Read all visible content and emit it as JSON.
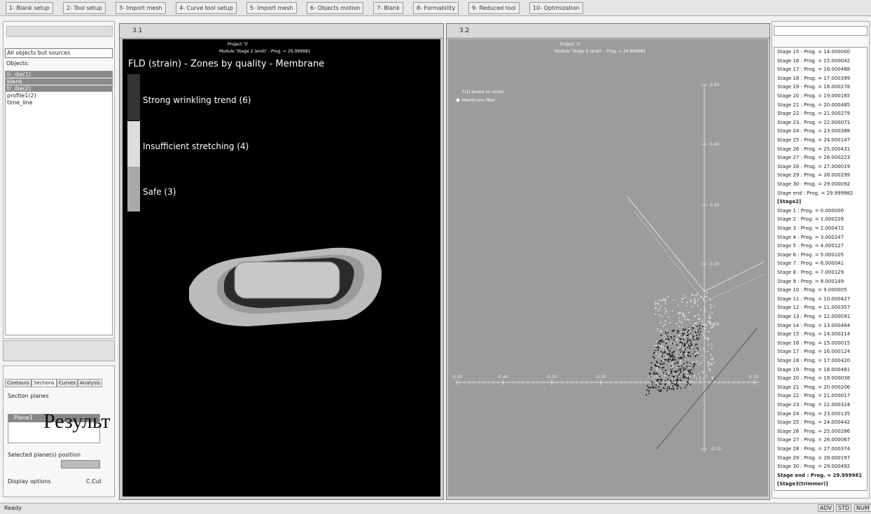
{
  "toolbar": {
    "buttons": [
      "1- Blank setup",
      "2- Tool setup",
      "3- Import mesh",
      "4- Curve tool setup",
      "5- Import mesh",
      "6- Objects motion",
      "7- Blank",
      "8- Formability",
      "9- Reduced tool",
      "10- Optimization"
    ]
  },
  "left_panel": {
    "filter": "All objects but sources",
    "objects_label": "Objects:",
    "objects": [
      "tr_die(1)",
      "blank",
      "tr_die(2)",
      "profile1(2)",
      "time_line"
    ],
    "tabs": [
      "Contours",
      "Sections",
      "Curves",
      "Analysis"
    ],
    "section_planes": "Section planes",
    "plane_item": "Plane1",
    "selected_position": "Selected plane(s) position",
    "display_options": "Display options",
    "c_cut": "C.Cut"
  },
  "overlay_text": "Результ",
  "viewport_1": {
    "title": "3.1",
    "project": "Project '3'",
    "module": "Module 'Stage 2 (end)' - Prog. = 29.999981",
    "fld_title": "FLD (strain) - Zones by quality - Membrane",
    "legend": [
      "Strong wrinkling trend (6)",
      "Insufficient stretching (4)",
      "Safe (3)"
    ]
  },
  "viewport_2": {
    "title": "3.2",
    "project": "Project '3'",
    "module": "Module 'Stage 2 (end)' - Prog. = 29.999981",
    "fld_label": "FLD based on strain",
    "fiber": "Membrane fiber",
    "y_ticks": [
      "0.50",
      "0.40",
      "0.30",
      "0.20",
      "0.10",
      "-0.10"
    ],
    "x_ticks": [
      "-0.50",
      "-0.40",
      "-0.30",
      "-0.20",
      "-0.10",
      "0.10"
    ]
  },
  "stage_list": [
    "Stage 15 : Prog. = 14.000000",
    "Stage 16 : Prog. = 15.000042",
    "Stage 17 : Prog. = 16.000488",
    "Stage 18 : Prog. = 17.000399",
    "Stage 19 : Prog. = 18.000278",
    "Stage 20 : Prog. = 19.000165",
    "Stage 21 : Prog. = 20.000485",
    "Stage 22 : Prog. = 21.000279",
    "Stage 23 : Prog. = 22.000071",
    "Stage 24 : Prog. = 23.000388",
    "Stage 25 : Prog. = 24.000147",
    "Stage 26 : Prog. = 25.000431",
    "Stage 27 : Prog. = 26.000223",
    "Stage 28 : Prog. = 27.000019",
    "Stage 29 : Prog. = 28.000299",
    "Stage 30 : Prog. = 29.000092",
    "Stage end : Prog. = 29.999982",
    "[Stage2]",
    "Stage 1 : Prog. = 0.000000",
    "Stage 2 : Prog. = 1.000226",
    "Stage 3 : Prog. = 2.000472",
    "Stage 4 : Prog. = 3.000247",
    "Stage 5 : Prog. = 4.000127",
    "Stage 6 : Prog. = 5.000105",
    "Stage 7 : Prog. = 6.000041",
    "Stage 8 : Prog. = 7.000129",
    "Stage 9 : Prog. = 8.000149",
    "Stage 10 : Prog. = 9.000005",
    "Stage 11 : Prog. = 10.000427",
    "Stage 12 : Prog. = 11.000357",
    "Stage 13 : Prog. = 12.000091",
    "Stage 14 : Prog. = 13.000464",
    "Stage 15 : Prog. = 14.000214",
    "Stage 16 : Prog. = 15.000015",
    "Stage 17 : Prog. = 16.000124",
    "Stage 18 : Prog. = 17.000420",
    "Stage 19 : Prog. = 18.000481",
    "Stage 20 : Prog. = 19.000038",
    "Stage 21 : Prog. = 20.000206",
    "Stage 22 : Prog. = 21.000017",
    "Stage 23 : Prog. = 22.000324",
    "Stage 24 : Prog. = 23.000135",
    "Stage 25 : Prog. = 24.000442",
    "Stage 26 : Prog. = 25.000286",
    "Stage 27 : Prog. = 26.000067",
    "Stage 28 : Prog. = 27.000374",
    "Stage 29 : Prog. = 28.000197",
    "Stage 30 : Prog. = 29.000492",
    "Stage end : Prog. = 29.999981",
    "[Stage3(trimmer)]"
  ],
  "status": {
    "text": "Ready",
    "indicators": [
      "ADV",
      "STD",
      "NUM"
    ]
  }
}
